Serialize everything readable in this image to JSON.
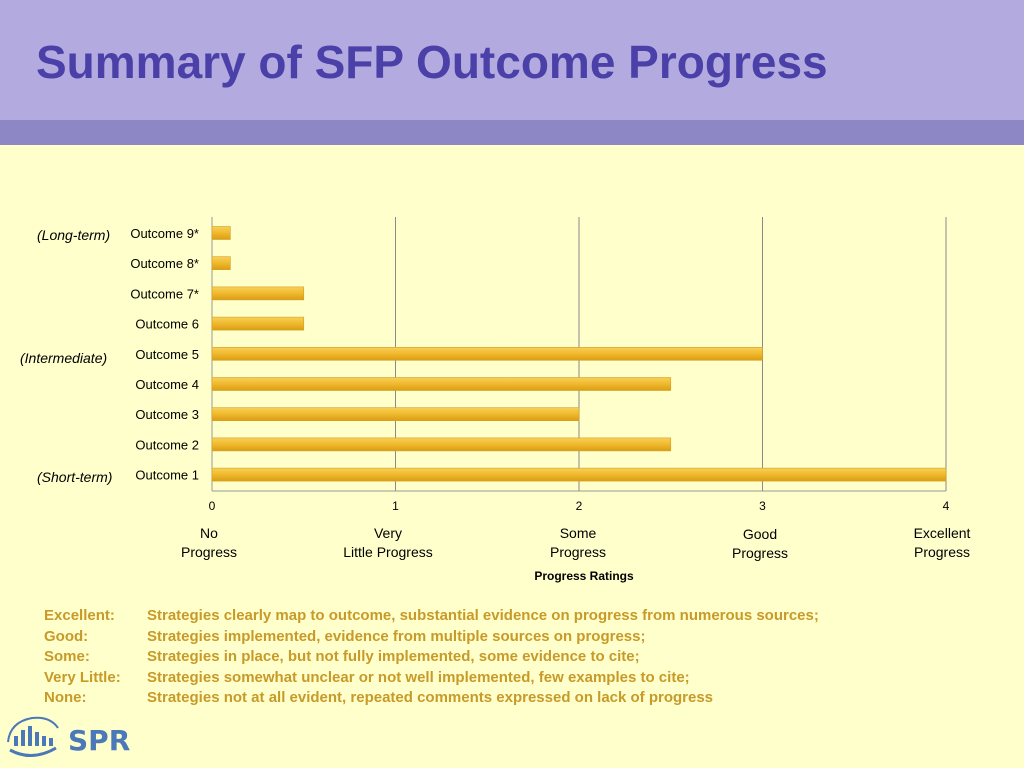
{
  "slide": {
    "title": "Summary of SFP Outcome Progress"
  },
  "group_labels": {
    "long_term": "(Long-term)",
    "intermediate": "(Intermediate)",
    "short_term": "(Short-term)"
  },
  "rating_labels": [
    "No\nProgress",
    "Very\nLittle Progress",
    "Some\nProgress",
    "Good\nProgress",
    "Excellent\nProgress"
  ],
  "legend": [
    {
      "term": "Excellent:",
      "desc": "Strategies clearly map to outcome, substantial evidence on progress from numerous sources;"
    },
    {
      "term": "Good:",
      "desc": "Strategies implemented, evidence from multiple sources on progress;"
    },
    {
      "term": "Some:",
      "desc": "Strategies in place, but not fully implemented, some evidence to cite;"
    },
    {
      "term": "Very Little:",
      "desc": "Strategies somewhat unclear or not well implemented, few examples to cite;"
    },
    {
      "term": "None:",
      "desc": "Strategies not at all evident, repeated comments expressed on lack of progress"
    }
  ],
  "logo": {
    "text": "SPR"
  },
  "colors": {
    "bar": "#f0b92c",
    "title": "#4b3fa8",
    "legend_text": "#c79a2a"
  },
  "chart_data": {
    "type": "bar",
    "orientation": "horizontal",
    "categories": [
      "Outcome 9*",
      "Outcome 8*",
      "Outcome 7*",
      "Outcome 6",
      "Outcome 5",
      "Outcome 4",
      "Outcome 3",
      "Outcome 2",
      "Outcome 1"
    ],
    "values": [
      0.1,
      0.1,
      0.5,
      0.5,
      3,
      2.5,
      2,
      2.5,
      4
    ],
    "xlabel": "Progress Ratings",
    "ylabel": "",
    "xlim": [
      0,
      4
    ],
    "xticks": [
      0,
      1,
      2,
      3,
      4
    ],
    "grid": true
  }
}
